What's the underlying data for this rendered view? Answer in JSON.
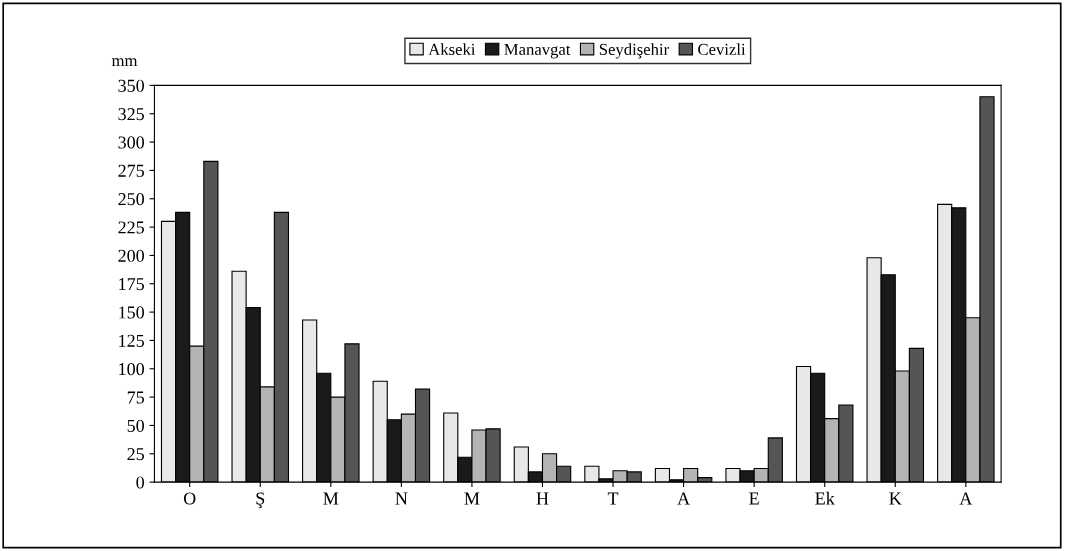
{
  "chart_data": {
    "type": "bar",
    "ylabel": "mm",
    "categories": [
      "O",
      "Ş",
      "M",
      "N",
      "M",
      "H",
      "T",
      "A",
      "E",
      "Ek",
      "K",
      "A"
    ],
    "series": [
      {
        "name": "Akseki",
        "color": "#e8e8e8",
        "values": [
          230,
          186,
          143,
          89,
          61,
          31,
          14,
          12,
          12,
          102,
          198,
          245
        ]
      },
      {
        "name": "Manavgat",
        "color": "#1a1a1a",
        "values": [
          238,
          154,
          96,
          55,
          22,
          9,
          3,
          2,
          10,
          96,
          183,
          242
        ]
      },
      {
        "name": "Seydişehir",
        "color": "#b4b4b4",
        "values": [
          120,
          84,
          75,
          60,
          46,
          25,
          10,
          12,
          12,
          56,
          98,
          145
        ]
      },
      {
        "name": "Cevizli",
        "color": "#555555",
        "values": [
          283,
          238,
          122,
          82,
          47,
          14,
          9,
          4,
          39,
          68,
          118,
          340
        ]
      }
    ],
    "ylim": [
      0,
      350
    ],
    "yticks": [
      0,
      25,
      50,
      75,
      100,
      125,
      150,
      175,
      200,
      225,
      250,
      275,
      300,
      325,
      350
    ],
    "grid": false,
    "legend": "top"
  }
}
